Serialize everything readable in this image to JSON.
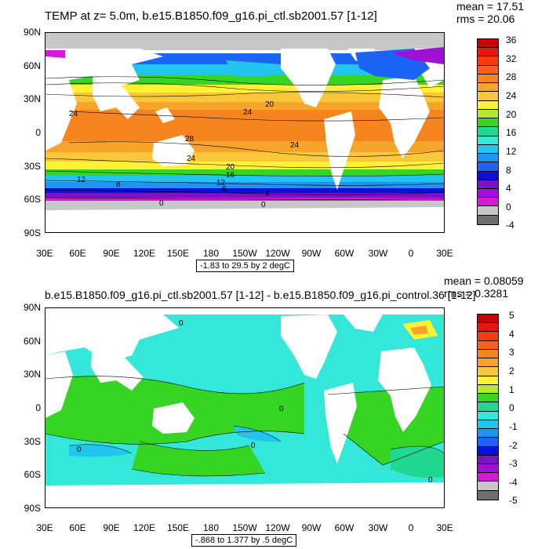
{
  "panels": [
    {
      "title": "TEMP at z=   5.0m, b.e15.B1850.f09_g16.pi_ctl.sb2001.57 [1-12]",
      "mean": "mean = 17.51",
      "rms": "rms = 20.06",
      "info": "-1.83 to 29.5 by 2 degC",
      "y_ticks": [
        "90N",
        "60N",
        "30N",
        "0",
        "30S",
        "60S",
        "90S"
      ],
      "x_ticks": [
        "30E",
        "60E",
        "90E",
        "120E",
        "150E",
        "180",
        "150W",
        "120W",
        "90W",
        "60W",
        "30W",
        "0",
        "30E"
      ],
      "colorbar": {
        "labels": [
          "36",
          "32",
          "28",
          "24",
          "20",
          "16",
          "12",
          "8",
          "4",
          "0",
          "-4"
        ],
        "colors": [
          "#c80000",
          "#e8160f",
          "#f53c0f",
          "#f9601c",
          "#f7851f",
          "#f7a52a",
          "#fac73a",
          "#fff133",
          "#b5e833",
          "#36d524",
          "#21d890",
          "#33e8d9",
          "#22c5ee",
          "#1e96ef",
          "#1b64f5",
          "#0a10d6",
          "#7813c8",
          "#a010d5",
          "#d619d7",
          "#c8c8c8",
          "#6e6e6e"
        ]
      },
      "contour_labels": [
        "20",
        "24",
        "24",
        "28",
        "24",
        "24",
        "20",
        "16",
        "12",
        "8",
        "12",
        "8",
        "4",
        "0",
        "0"
      ]
    },
    {
      "title": "b.e15.B1850.f09_g16.pi_ctl.sb2001.57 [1-12] - b.e15.B1850.f09_g16.pi_control.36 [1-12]",
      "mean": "mean = 0.08059",
      "rms": "rms = 0.3281",
      "info": "-.868 to 1.377 by .5 degC",
      "y_ticks": [
        "90N",
        "60N",
        "30N",
        "0",
        "30S",
        "60S",
        "90S"
      ],
      "x_ticks": [
        "30E",
        "60E",
        "90E",
        "120E",
        "150E",
        "180",
        "150W",
        "120W",
        "90W",
        "60W",
        "30W",
        "0",
        "30E"
      ],
      "colorbar": {
        "labels": [
          "5",
          "4",
          "3",
          "2",
          "1",
          "0",
          "-1",
          "-2",
          "-3",
          "-4",
          "-5"
        ],
        "colors": [
          "#c80000",
          "#e8160f",
          "#f53c0f",
          "#f9601c",
          "#f7851f",
          "#f7a52a",
          "#fac73a",
          "#fff133",
          "#b5e833",
          "#36d524",
          "#21d890",
          "#33e8d9",
          "#22c5ee",
          "#1e96ef",
          "#1b64f5",
          "#0a10d6",
          "#7813c8",
          "#a010d5",
          "#d619d7",
          "#c8c8c8",
          "#6e6e6e"
        ]
      },
      "contour_labels": [
        "0",
        "0",
        "0",
        "0",
        "0"
      ]
    }
  ]
}
